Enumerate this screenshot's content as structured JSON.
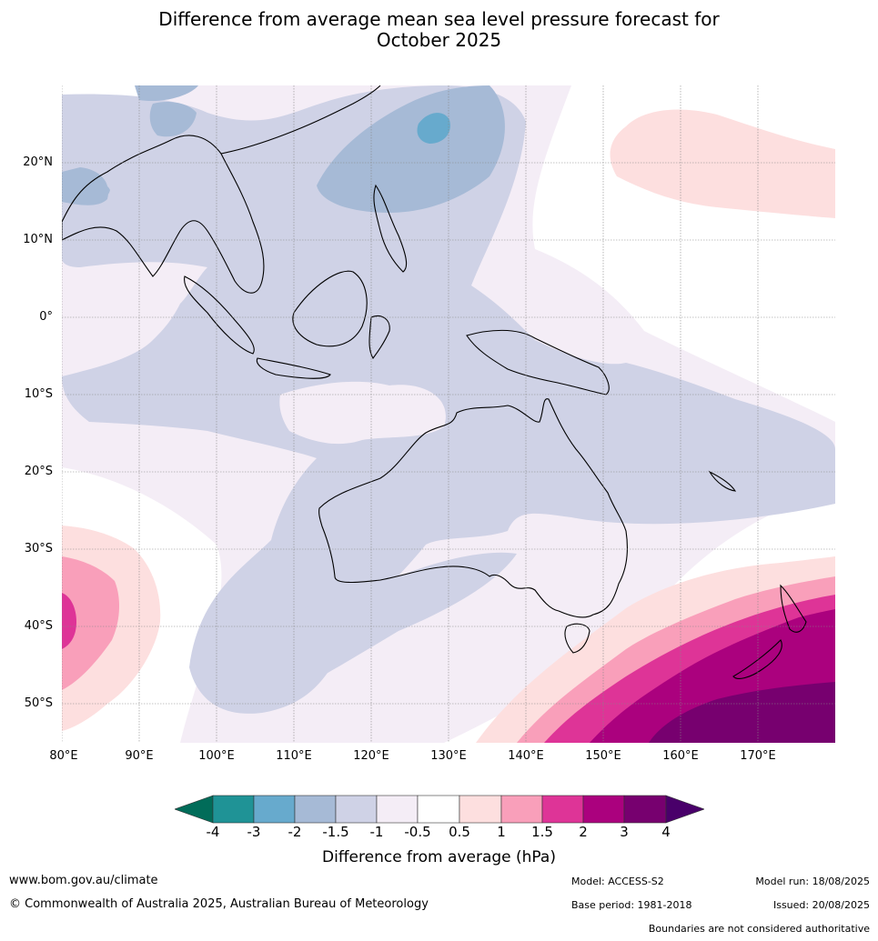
{
  "title_line1": "Difference from average mean sea level pressure forecast for",
  "title_line2": "October 2025",
  "lat_labels": [
    "20°N",
    "10°N",
    "0°",
    "10°S",
    "20°S",
    "30°S",
    "40°S",
    "50°S"
  ],
  "lon_labels": [
    "80°E",
    "90°E",
    "100°E",
    "110°E",
    "120°E",
    "130°E",
    "140°E",
    "150°E",
    "160°E",
    "170°E"
  ],
  "colorbar": {
    "ticks": [
      "-4",
      "-3",
      "-2",
      "-1.5",
      "-1",
      "-0.5",
      "0.5",
      "1",
      "1.5",
      "2",
      "3",
      "4"
    ],
    "colors": [
      "#1f9396",
      "#67aacd",
      "#a6bad6",
      "#cfd2e6",
      "#f4edf6",
      "#ffffff",
      "#fddfdf",
      "#f99fba",
      "#de3497",
      "#ab017e",
      "#77006f"
    ],
    "extend_low_color": "#016c59",
    "extend_high_color": "#49006a",
    "label": "Difference from average (hPa)"
  },
  "footer": {
    "website": "www.bom.gov.au/climate",
    "copyright": "© Commonwealth of Australia 2025, Australian Bureau of Meteorology",
    "model": "Model: ACCESS-S2",
    "model_run": "Model run: 18/08/2025",
    "base_period": "Base period: 1981-2018",
    "issued": "Issued: 20/08/2025",
    "disclaimer": "Boundaries are not considered authoritative"
  }
}
